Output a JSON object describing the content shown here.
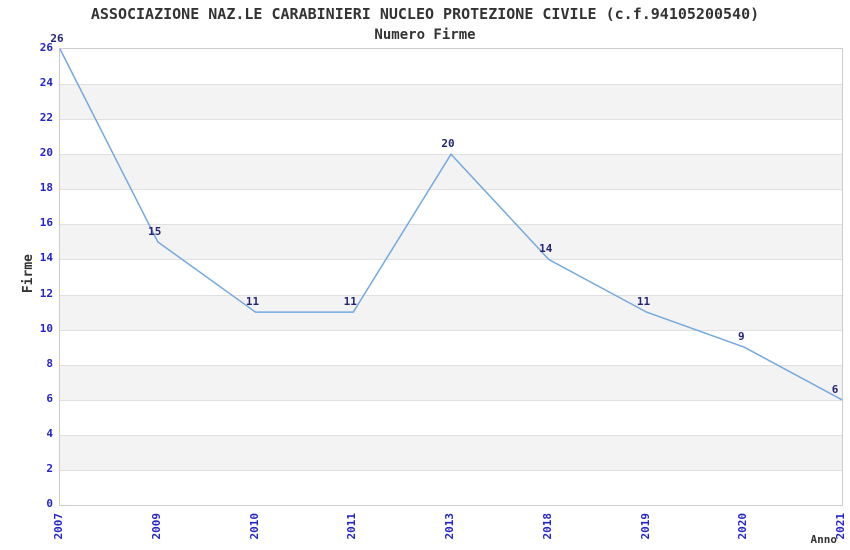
{
  "chart_data": {
    "type": "line",
    "title": "ASSOCIAZIONE NAZ.LE CARABINIERI NUCLEO PROTEZIONE CIVILE (c.f.94105200540)",
    "subtitle": "Numero Firme",
    "xlabel": "Anno",
    "ylabel": "Firme",
    "categories": [
      "2007",
      "2009",
      "2010",
      "2011",
      "2013",
      "2018",
      "2019",
      "2020",
      "2021"
    ],
    "values": [
      26,
      15,
      11,
      11,
      20,
      14,
      11,
      9,
      6
    ],
    "ylim": [
      0,
      26
    ],
    "ytick_step": 2,
    "grid": true,
    "legend": "none",
    "bands": "alternating horizontal gray stripes every 2 units",
    "colors": {
      "line": "#74a9df",
      "tick_label": "#2424cc",
      "data_label": "#252578",
      "band": "#f3f3f3",
      "gridline": "#e0e0e0",
      "border": "#cccccc",
      "title": "#333333"
    }
  }
}
